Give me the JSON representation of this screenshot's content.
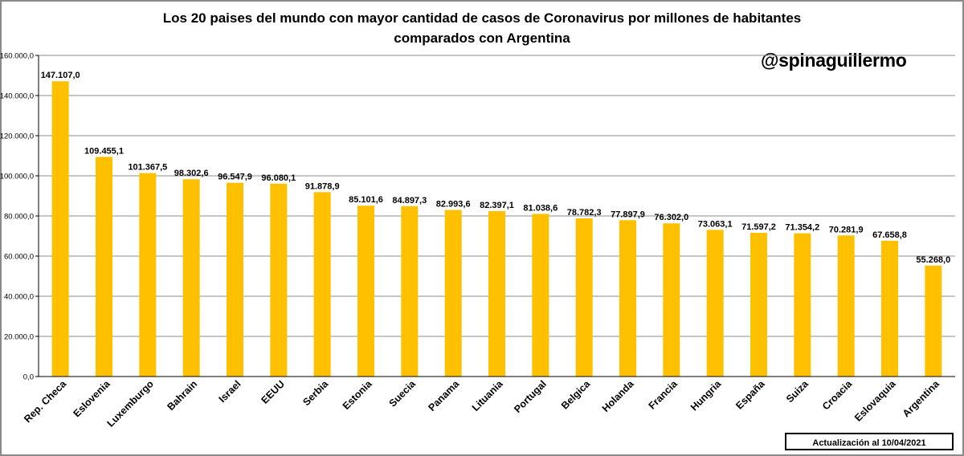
{
  "chart_data": {
    "type": "bar",
    "title": "Los 20 paises del mundo con mayor cantidad de casos de Coronavirus por millones de habitantes comparados con Argentina",
    "title_lines": [
      "Los 20 paises del mundo con mayor cantidad de casos de Coronavirus por millones de habitantes",
      "comparados con Argentina"
    ],
    "categories": [
      "Rep. Checa",
      "Eslovenia",
      "Luxemburgo",
      "Bahrain",
      "Israel",
      "EEUU",
      "Serbia",
      "Estonia",
      "Suecia",
      "Panama",
      "Lituania",
      "Portugal",
      "Belgica",
      "Holanda",
      "Francia",
      "Hungria",
      "España",
      "Suiza",
      "Croacia",
      "Eslovaquia",
      "Argentina"
    ],
    "values": [
      147107.0,
      109455.1,
      101367.5,
      98302.6,
      96547.9,
      96080.1,
      91878.9,
      85101.6,
      84897.3,
      82993.6,
      82397.1,
      81038.6,
      78782.3,
      77897.9,
      76302.0,
      73063.1,
      71597.2,
      71354.2,
      70281.9,
      67658.8,
      55268.0
    ],
    "value_labels": [
      "147.107,0",
      "109.455,1",
      "101.367,5",
      "98.302,6",
      "96.547,9",
      "96.080,1",
      "91.878,9",
      "85.101,6",
      "84.897,3",
      "82.993,6",
      "82.397,1",
      "81.038,6",
      "78.782,3",
      "77.897,9",
      "76.302,0",
      "73.063,1",
      "71.597,2",
      "71.354,2",
      "70.281,9",
      "67.658,8",
      "55.268,0"
    ],
    "ylim": [
      0,
      160000
    ],
    "yticks": [
      0,
      20000,
      40000,
      60000,
      80000,
      100000,
      120000,
      140000,
      160000
    ],
    "ytick_labels": [
      "0,0",
      "20.000,0",
      "40.000,0",
      "60.000,0",
      "80.000,0",
      "100.000,0",
      "120.000,0",
      "140.000,0",
      "160.000,0"
    ],
    "xlabel": "",
    "ylabel": "",
    "grid": true,
    "legend": "none",
    "bar_color": "#ffc000",
    "grid_color": "#8c8c8c",
    "background": "#ffffff"
  },
  "watermark": "@spinaguillermo",
  "update_note": "Actualización al 10/04/2021"
}
